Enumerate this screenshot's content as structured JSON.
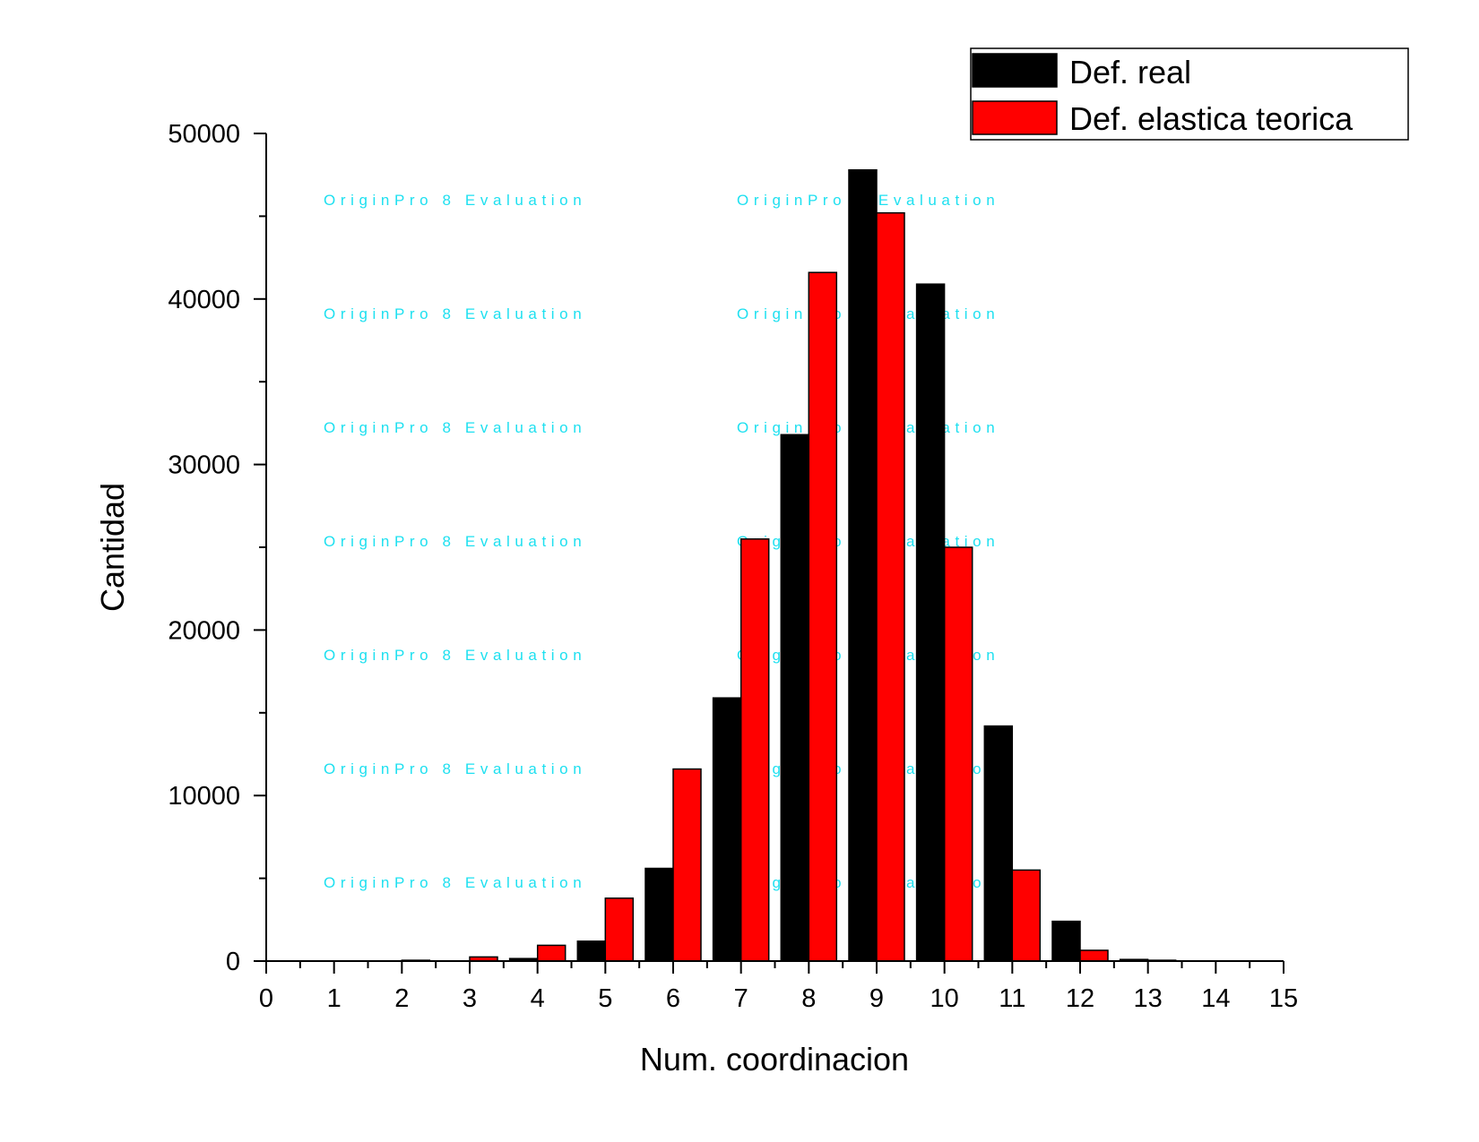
{
  "chart_data": {
    "type": "bar",
    "title": "",
    "xlabel": "Num. coordinacion",
    "ylabel": "Cantidad",
    "x": [
      2,
      3,
      4,
      5,
      6,
      7,
      8,
      9,
      10,
      11,
      12,
      13
    ],
    "xlim": [
      0,
      15
    ],
    "ylim": [
      0,
      50000
    ],
    "xticks": [
      "0",
      "1",
      "2",
      "3",
      "4",
      "5",
      "6",
      "7",
      "8",
      "9",
      "10",
      "11",
      "12",
      "13",
      "14",
      "15"
    ],
    "yticks": [
      "0",
      "10000",
      "20000",
      "30000",
      "40000",
      "50000"
    ],
    "grid": false,
    "legend_position": "top-right",
    "series": [
      {
        "name": "Def. real",
        "color": "#000000",
        "values": [
          0,
          0,
          150,
          1200,
          5600,
          15900,
          31800,
          47800,
          40900,
          14200,
          2400,
          100
        ]
      },
      {
        "name": "Def. elastica teorica",
        "color": "#ff0000",
        "values": [
          50,
          250,
          950,
          3800,
          11600,
          25500,
          41600,
          45200,
          25000,
          5500,
          650,
          50
        ]
      }
    ],
    "watermark": "OriginPro 8 Evaluation"
  }
}
